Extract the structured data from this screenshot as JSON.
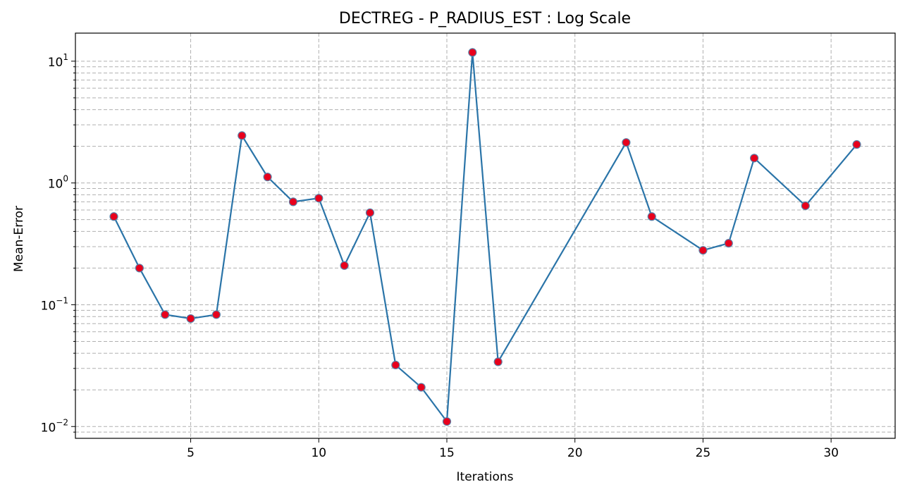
{
  "chart_data": {
    "type": "line",
    "title": "DECTREG - P_RADIUS_EST : Log Scale",
    "xlabel": "Iterations",
    "ylabel": "Mean-Error",
    "yscale": "log",
    "xlim": [
      0.5,
      32.5
    ],
    "ylim": [
      0.008,
      17
    ],
    "xticks": [
      5,
      10,
      15,
      20,
      25,
      30
    ],
    "yticks": [
      {
        "value": 0.01,
        "base": "10",
        "exp": "−2"
      },
      {
        "value": 0.1,
        "base": "10",
        "exp": "−1"
      },
      {
        "value": 1,
        "base": "10",
        "exp": "0"
      },
      {
        "value": 10,
        "base": "10",
        "exp": "1"
      }
    ],
    "grid": true,
    "series": [
      {
        "line_color": "#2a74a8",
        "marker_face": "#e8001c",
        "marker_edge": "#5b7fa6",
        "points": [
          {
            "x": 2,
            "y": 0.53
          },
          {
            "x": 3,
            "y": 0.2
          },
          {
            "x": 4,
            "y": 0.083
          },
          {
            "x": 5,
            "y": 0.077
          },
          {
            "x": 6,
            "y": 0.083
          },
          {
            "x": 7,
            "y": 2.45
          },
          {
            "x": 8,
            "y": 1.12
          },
          {
            "x": 9,
            "y": 0.7
          },
          {
            "x": 10,
            "y": 0.75
          },
          {
            "x": 11,
            "y": 0.21
          },
          {
            "x": 12,
            "y": 0.57
          },
          {
            "x": 13,
            "y": 0.032
          },
          {
            "x": 14,
            "y": 0.021
          },
          {
            "x": 15,
            "y": 0.011
          },
          {
            "x": 16,
            "y": 11.8
          },
          {
            "x": 17,
            "y": 0.034
          },
          {
            "x": 22,
            "y": 2.15
          },
          {
            "x": 23,
            "y": 0.53
          },
          {
            "x": 25,
            "y": 0.28
          },
          {
            "x": 26,
            "y": 0.32
          },
          {
            "x": 27,
            "y": 1.6
          },
          {
            "x": 29,
            "y": 0.65
          },
          {
            "x": 31,
            "y": 2.07
          }
        ]
      }
    ]
  }
}
